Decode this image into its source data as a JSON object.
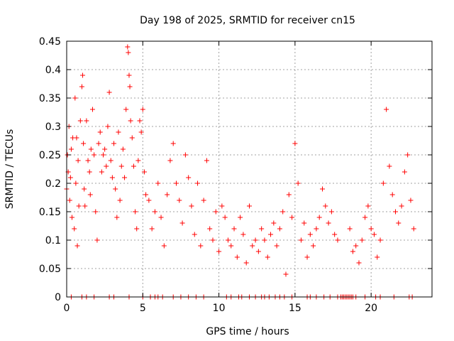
{
  "chart_data": {
    "type": "scatter",
    "title": "Day 198 of 2025, SRMTID for receiver cn15",
    "xlabel": "GPS time / hours",
    "ylabel": "SRMTID / TECUs",
    "xlim": [
      0,
      24
    ],
    "ylim": [
      0,
      0.45
    ],
    "xticks": [
      0,
      5,
      10,
      15,
      20
    ],
    "xtick_labels": [
      "0",
      "5",
      "10",
      "15",
      "20"
    ],
    "yticks": [
      0,
      0.05,
      0.1,
      0.15,
      0.2,
      0.25,
      0.3,
      0.35,
      0.4,
      0.45
    ],
    "ytick_labels": [
      "0",
      "0.05",
      "0.1",
      "0.15",
      "0.2",
      "0.25",
      "0.3",
      "0.35",
      "0.4",
      "0.45"
    ],
    "grid": true,
    "marker": "plus",
    "color": "#ff0000",
    "series": [
      {
        "name": "SRMTID",
        "x": [
          0.0,
          0.05,
          0.1,
          0.15,
          0.2,
          0.25,
          0.3,
          0.35,
          0.4,
          0.5,
          0.55,
          0.6,
          0.65,
          0.7,
          0.75,
          0.8,
          0.9,
          1.0,
          1.05,
          1.1,
          1.15,
          1.2,
          1.3,
          1.4,
          1.5,
          1.55,
          1.6,
          1.7,
          1.8,
          1.9,
          2.0,
          2.1,
          2.2,
          2.3,
          2.4,
          2.5,
          2.6,
          2.7,
          2.8,
          2.9,
          3.0,
          3.1,
          3.2,
          3.3,
          3.4,
          3.5,
          3.6,
          3.7,
          3.8,
          3.9,
          4.0,
          4.05,
          4.1,
          4.15,
          4.2,
          4.3,
          4.4,
          4.5,
          4.6,
          4.7,
          4.8,
          4.9,
          5.0,
          5.1,
          5.2,
          5.4,
          5.6,
          5.8,
          6.0,
          6.2,
          6.4,
          6.6,
          6.8,
          7.0,
          7.2,
          7.4,
          7.6,
          7.8,
          8.0,
          8.2,
          8.4,
          8.6,
          8.8,
          9.0,
          9.2,
          9.4,
          9.6,
          9.8,
          10.0,
          10.2,
          10.4,
          10.6,
          10.8,
          11.0,
          11.2,
          11.4,
          11.6,
          11.8,
          12.0,
          12.2,
          12.4,
          12.6,
          12.8,
          13.0,
          13.2,
          13.4,
          13.6,
          13.8,
          14.0,
          14.2,
          14.4,
          14.6,
          14.8,
          15.0,
          15.2,
          15.4,
          15.6,
          15.8,
          16.0,
          16.2,
          16.4,
          16.6,
          16.8,
          17.0,
          17.2,
          17.4,
          17.6,
          17.8,
          18.6,
          18.8,
          19.0,
          19.2,
          19.4,
          19.6,
          19.8,
          20.0,
          20.2,
          20.4,
          20.6,
          20.8,
          21.0,
          21.2,
          21.4,
          21.6,
          21.8,
          22.0,
          22.2,
          22.4,
          22.6,
          22.8
        ],
        "y": [
          0.19,
          0.25,
          0.22,
          0.3,
          0.17,
          0.21,
          0.26,
          0.14,
          0.28,
          0.12,
          0.35,
          0.2,
          0.28,
          0.09,
          0.24,
          0.16,
          0.31,
          0.37,
          0.39,
          0.27,
          0.19,
          0.16,
          0.31,
          0.24,
          0.22,
          0.18,
          0.26,
          0.33,
          0.25,
          0.15,
          0.1,
          0.27,
          0.29,
          0.22,
          0.25,
          0.26,
          0.23,
          0.3,
          0.36,
          0.24,
          0.21,
          0.27,
          0.19,
          0.14,
          0.29,
          0.17,
          0.23,
          0.26,
          0.21,
          0.33,
          0.44,
          0.43,
          0.39,
          0.37,
          0.31,
          0.28,
          0.23,
          0.15,
          0.12,
          0.24,
          0.31,
          0.29,
          0.33,
          0.22,
          0.18,
          0.17,
          0.12,
          0.15,
          0.2,
          0.14,
          0.09,
          0.18,
          0.24,
          0.27,
          0.2,
          0.17,
          0.13,
          0.25,
          0.21,
          0.16,
          0.11,
          0.2,
          0.09,
          0.17,
          0.24,
          0.12,
          0.1,
          0.15,
          0.08,
          0.16,
          0.14,
          0.1,
          0.09,
          0.12,
          0.07,
          0.14,
          0.11,
          0.06,
          0.16,
          0.09,
          0.1,
          0.08,
          0.12,
          0.1,
          0.07,
          0.11,
          0.13,
          0.09,
          0.12,
          0.15,
          0.04,
          0.18,
          0.14,
          0.27,
          0.2,
          0.1,
          0.13,
          0.07,
          0.11,
          0.09,
          0.12,
          0.14,
          0.19,
          0.16,
          0.13,
          0.15,
          0.11,
          0.1,
          0.12,
          0.08,
          0.09,
          0.06,
          0.1,
          0.14,
          0.16,
          0.12,
          0.11,
          0.07,
          0.1,
          0.2,
          0.33,
          0.23,
          0.18,
          0.15,
          0.13,
          0.16,
          0.22,
          0.25,
          0.17,
          0.12
        ]
      }
    ],
    "zero_markers_x": [
      0.3,
      1.0,
      1.3,
      1.8,
      2.8,
      3.1,
      4.1,
      5.0,
      5.5,
      5.8,
      6.0,
      6.3,
      7.0,
      7.5,
      8.0,
      8.5,
      9.0,
      10.5,
      10.8,
      11.3,
      11.5,
      12.0,
      12.4,
      12.8,
      13.0,
      13.3,
      13.7,
      14.0,
      14.3,
      14.8,
      15.8,
      16.0,
      16.4,
      16.9,
      17.3,
      17.8,
      18.0,
      18.1,
      18.2,
      18.3,
      18.4,
      18.5,
      18.6,
      18.7,
      18.8,
      19.0,
      19.6,
      20.3,
      20.6,
      21.5,
      22.5,
      22.7
    ]
  }
}
